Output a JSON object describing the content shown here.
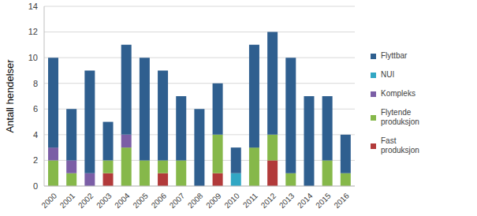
{
  "chart_data": {
    "type": "bar",
    "stacked": true,
    "grid": true,
    "legend": "right",
    "y_label": "Antall hendelser",
    "categories": [
      "2000",
      "2001",
      "2002",
      "2003",
      "2004",
      "2005",
      "2006",
      "2007",
      "2008",
      "2009",
      "2010",
      "2011",
      "2012",
      "2013",
      "2014",
      "2015",
      "2016"
    ],
    "ylim": [
      0,
      14
    ],
    "yticks": [
      0,
      2,
      4,
      6,
      8,
      10,
      12,
      14
    ],
    "series": [
      {
        "name": "Flyttbar",
        "color": "#2f5f8f",
        "values": [
          7,
          4,
          8,
          3,
          7,
          8,
          7,
          5,
          6,
          4,
          2,
          8,
          8,
          9,
          7,
          5,
          3
        ]
      },
      {
        "name": "NUI",
        "color": "#31a7c4",
        "values": [
          0,
          0,
          0,
          0,
          0,
          0,
          0,
          0,
          0,
          0,
          1,
          0,
          0,
          0,
          0,
          0,
          0
        ]
      },
      {
        "name": "Kompleks",
        "color": "#7b5ea6",
        "values": [
          1,
          1,
          1,
          0,
          1,
          0,
          0,
          0,
          0,
          0,
          0,
          0,
          0,
          0,
          0,
          0,
          0
        ]
      },
      {
        "name": "Flytende\nproduksjon",
        "color": "#86b84a",
        "values": [
          2,
          1,
          0,
          1,
          3,
          2,
          1,
          2,
          0,
          3,
          0,
          3,
          2,
          1,
          0,
          2,
          1
        ]
      },
      {
        "name": "Fast\nproduksjon",
        "color": "#b23a3a",
        "values": [
          0,
          0,
          0,
          1,
          0,
          0,
          1,
          0,
          0,
          1,
          0,
          0,
          2,
          0,
          0,
          0,
          0
        ]
      }
    ]
  }
}
